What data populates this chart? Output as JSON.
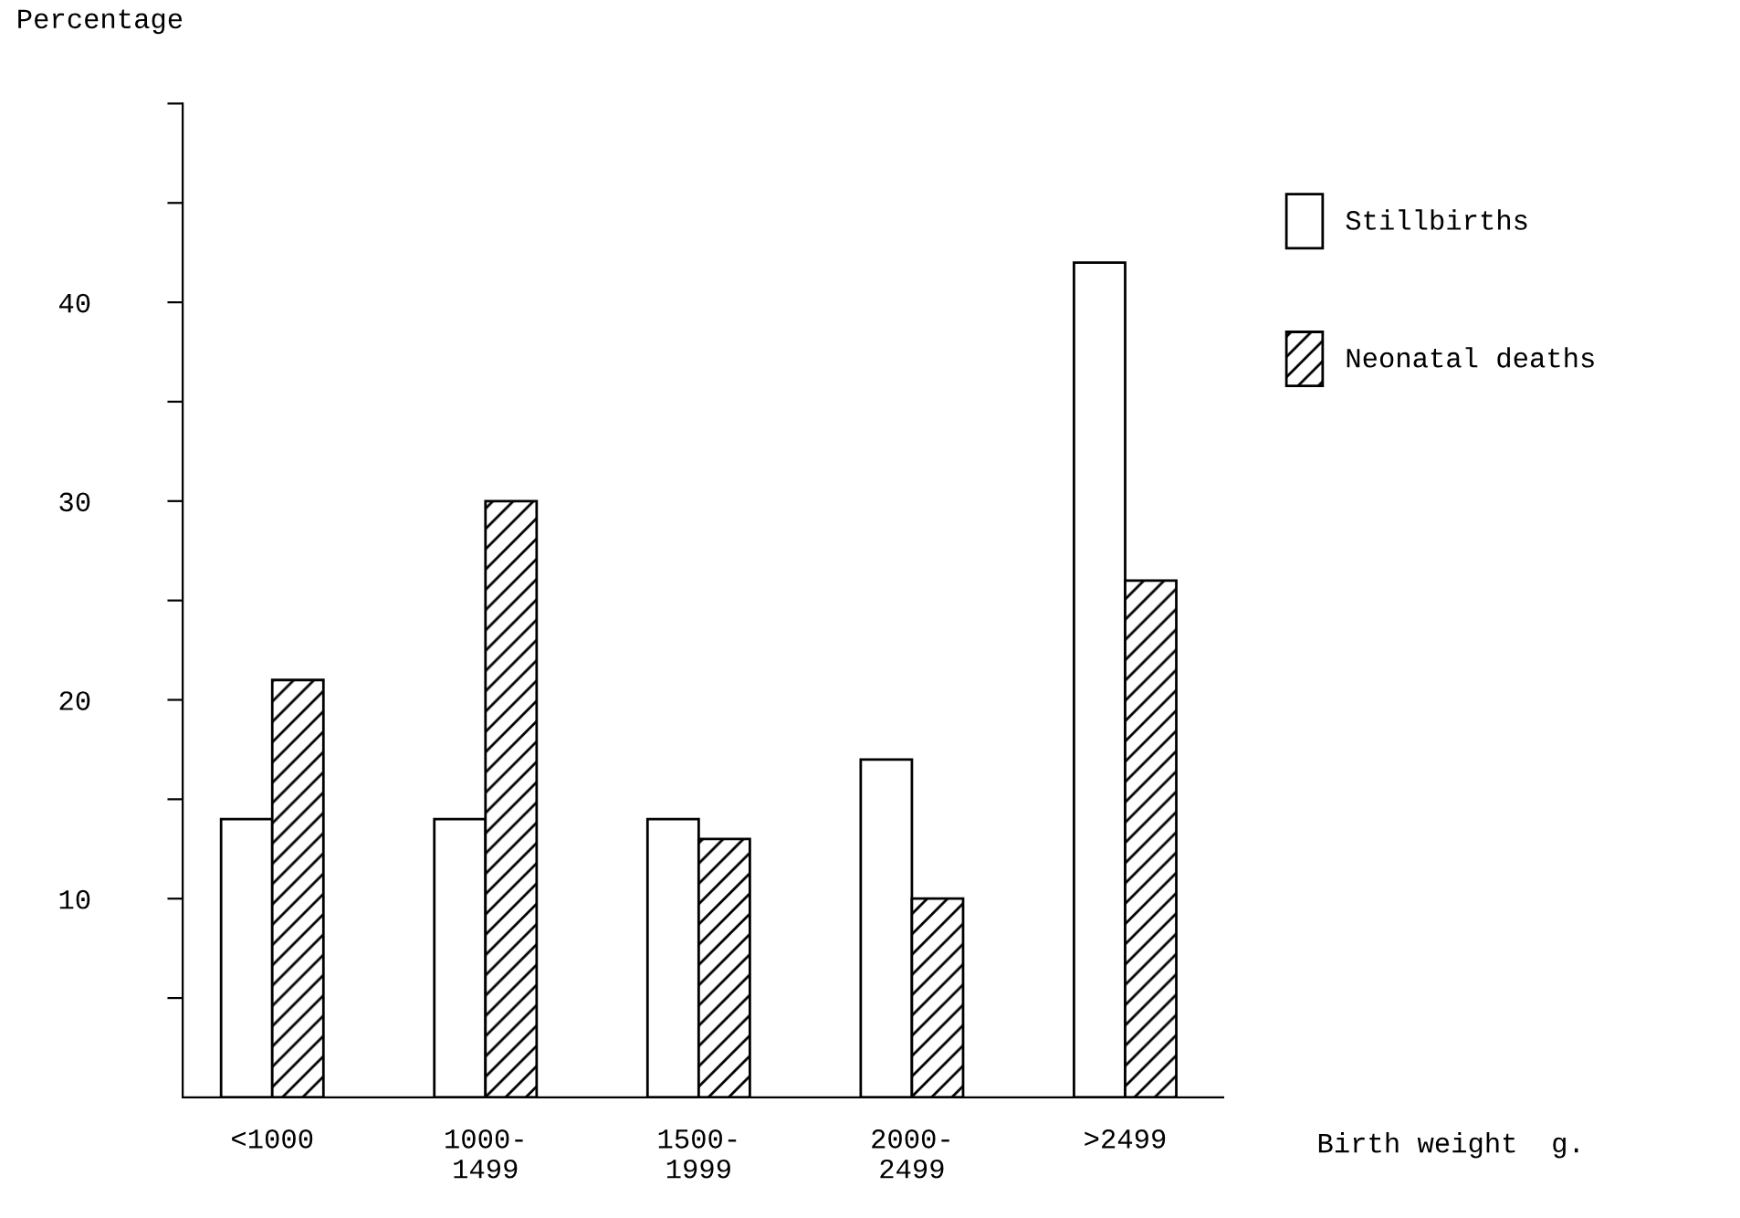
{
  "chart_data": {
    "type": "bar",
    "ylabel": "Percentage",
    "xlabel": "Birth weight  g.",
    "categories": [
      "<1000",
      "1000-\n1499",
      "1500-\n1999",
      "2000-\n2499",
      ">2499"
    ],
    "series": [
      {
        "name": "Stillbirths",
        "color": "#ffffff",
        "values": [
          14,
          14,
          14,
          17,
          42
        ]
      },
      {
        "name": "Neonatal deaths",
        "color": "#000000",
        "values": [
          21,
          30,
          13,
          10,
          26
        ]
      }
    ],
    "ylim": [
      0,
      50
    ],
    "yticks": [
      {
        "value": 5,
        "label": null
      },
      10,
      {
        "value": 15,
        "label": null
      },
      20,
      {
        "value": 25,
        "label": null
      },
      30,
      {
        "value": 35,
        "label": null
      },
      40,
      {
        "value": 45,
        "label": null
      },
      {
        "value": 50,
        "label": null
      }
    ],
    "grid": false,
    "legend": "right"
  }
}
